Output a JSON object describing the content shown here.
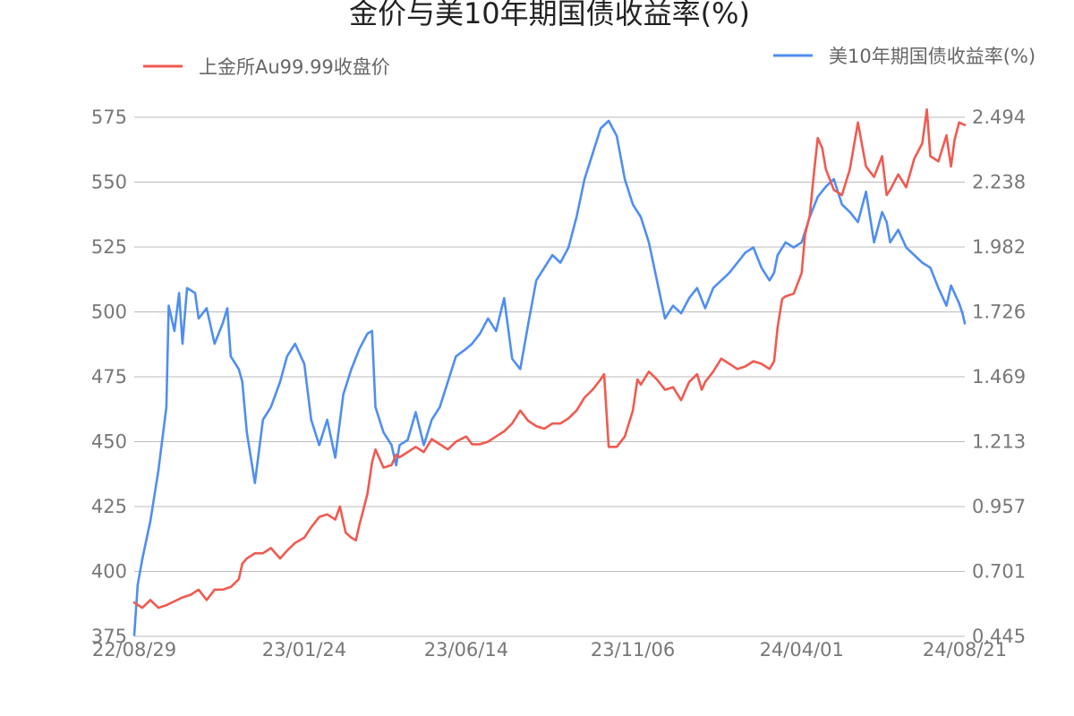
{
  "chart_data": {
    "type": "line",
    "title": "金价与美10年期国债收益率(%)",
    "x_ticks": [
      "22/08/29",
      "23/01/24",
      "23/06/14",
      "23/11/06",
      "24/04/01",
      "24/08/21"
    ],
    "y_left": {
      "ticks": [
        "375",
        "400",
        "425",
        "450",
        "475",
        "500",
        "525",
        "550",
        "575"
      ],
      "ylim": [
        375,
        575
      ]
    },
    "y_right": {
      "ticks": [
        "0.445",
        "0.701",
        "0.957",
        "1.213",
        "1.469",
        "1.726",
        "1.982",
        "2.238",
        "2.494"
      ],
      "ylim": [
        0.445,
        2.494
      ]
    },
    "grid": true,
    "legend_position": "top",
    "series": [
      {
        "name": "上金所Au99.99收盘价",
        "axis": "left",
        "color": "#f05a50",
        "points": [
          [
            "22/08/29",
            388
          ],
          [
            "22/09/05",
            386
          ],
          [
            "22/09/12",
            389
          ],
          [
            "22/09/19",
            386
          ],
          [
            "22/09/26",
            387
          ],
          [
            "22/10/10",
            390
          ],
          [
            "22/10/17",
            391
          ],
          [
            "22/10/24",
            393
          ],
          [
            "22/10/31",
            389
          ],
          [
            "22/11/07",
            393
          ],
          [
            "22/11/14",
            393
          ],
          [
            "22/11/21",
            394
          ],
          [
            "22/11/28",
            397
          ],
          [
            "22/12/01",
            403
          ],
          [
            "22/12/05",
            405
          ],
          [
            "22/12/12",
            407
          ],
          [
            "22/12/19",
            407
          ],
          [
            "22/12/26",
            409
          ],
          [
            "23/01/03",
            405
          ],
          [
            "23/01/09",
            408
          ],
          [
            "23/01/16",
            411
          ],
          [
            "23/01/24",
            413
          ],
          [
            "23/01/30",
            417
          ],
          [
            "23/02/06",
            421
          ],
          [
            "23/02/13",
            422
          ],
          [
            "23/02/20",
            420
          ],
          [
            "23/02/24",
            425
          ],
          [
            "23/03/01",
            415
          ],
          [
            "23/03/06",
            413
          ],
          [
            "23/03/10",
            412
          ],
          [
            "23/03/13",
            418
          ],
          [
            "23/03/16",
            423
          ],
          [
            "23/03/20",
            430
          ],
          [
            "23/03/24",
            442
          ],
          [
            "23/03/27",
            447
          ],
          [
            "23/04/03",
            440
          ],
          [
            "23/04/10",
            441
          ],
          [
            "23/04/14",
            445
          ],
          [
            "23/04/17",
            444
          ],
          [
            "23/04/24",
            446
          ],
          [
            "23/05/01",
            448
          ],
          [
            "23/05/08",
            446
          ],
          [
            "23/05/15",
            451
          ],
          [
            "23/05/22",
            449
          ],
          [
            "23/05/29",
            447
          ],
          [
            "23/06/05",
            450
          ],
          [
            "23/06/14",
            452
          ],
          [
            "23/06/19",
            449
          ],
          [
            "23/06/26",
            449
          ],
          [
            "23/07/03",
            450
          ],
          [
            "23/07/10",
            452
          ],
          [
            "23/07/17",
            454
          ],
          [
            "23/07/24",
            457
          ],
          [
            "23/07/31",
            462
          ],
          [
            "23/08/07",
            458
          ],
          [
            "23/08/14",
            456
          ],
          [
            "23/08/21",
            455
          ],
          [
            "23/08/28",
            457
          ],
          [
            "23/09/04",
            457
          ],
          [
            "23/09/11",
            459
          ],
          [
            "23/09/18",
            462
          ],
          [
            "23/09/25",
            467
          ],
          [
            "23/10/02",
            470
          ],
          [
            "23/10/09",
            474
          ],
          [
            "23/10/12",
            476
          ],
          [
            "23/10/16",
            448
          ],
          [
            "23/10/23",
            448
          ],
          [
            "23/10/30",
            452
          ],
          [
            "23/11/06",
            462
          ],
          [
            "23/11/10",
            474
          ],
          [
            "23/11/13",
            472
          ],
          [
            "23/11/20",
            477
          ],
          [
            "23/11/27",
            474
          ],
          [
            "23/12/04",
            470
          ],
          [
            "23/12/11",
            471
          ],
          [
            "23/12/18",
            466
          ],
          [
            "23/12/25",
            473
          ],
          [
            "24/01/01",
            476
          ],
          [
            "24/01/05",
            470
          ],
          [
            "24/01/08",
            473
          ],
          [
            "24/01/15",
            477
          ],
          [
            "24/01/22",
            482
          ],
          [
            "24/01/29",
            480
          ],
          [
            "24/02/05",
            478
          ],
          [
            "24/02/12",
            479
          ],
          [
            "24/02/19",
            481
          ],
          [
            "24/02/26",
            480
          ],
          [
            "24/03/04",
            478
          ],
          [
            "24/03/08",
            481
          ],
          [
            "24/03/11",
            494
          ],
          [
            "24/03/15",
            505
          ],
          [
            "24/03/18",
            506
          ],
          [
            "24/03/25",
            507
          ],
          [
            "24/04/01",
            515
          ],
          [
            "24/04/04",
            530
          ],
          [
            "24/04/08",
            537
          ],
          [
            "24/04/12",
            555
          ],
          [
            "24/04/15",
            567
          ],
          [
            "24/04/19",
            563
          ],
          [
            "24/04/22",
            555
          ],
          [
            "24/04/29",
            547
          ],
          [
            "24/05/06",
            545
          ],
          [
            "24/05/13",
            555
          ],
          [
            "24/05/20",
            573
          ],
          [
            "24/05/27",
            556
          ],
          [
            "24/06/03",
            552
          ],
          [
            "24/06/10",
            560
          ],
          [
            "24/06/14",
            545
          ],
          [
            "24/06/17",
            547
          ],
          [
            "24/06/24",
            553
          ],
          [
            "24/07/01",
            548
          ],
          [
            "24/07/08",
            559
          ],
          [
            "24/07/15",
            565
          ],
          [
            "24/07/19",
            578
          ],
          [
            "24/07/22",
            560
          ],
          [
            "24/07/29",
            558
          ],
          [
            "24/08/05",
            568
          ],
          [
            "24/08/09",
            556
          ],
          [
            "24/08/12",
            566
          ],
          [
            "24/08/16",
            573
          ],
          [
            "24/08/21",
            572
          ]
        ]
      },
      {
        "name": "美10年期国债收益率(%)",
        "axis": "right",
        "color": "#4f8ef0",
        "points": [
          [
            "22/08/29",
            0.45
          ],
          [
            "22/09/01",
            0.65
          ],
          [
            "22/09/05",
            0.75
          ],
          [
            "22/09/12",
            0.9
          ],
          [
            "22/09/19",
            1.1
          ],
          [
            "22/09/26",
            1.35
          ],
          [
            "22/09/28",
            1.75
          ],
          [
            "22/10/03",
            1.65
          ],
          [
            "22/10/07",
            1.8
          ],
          [
            "22/10/10",
            1.6
          ],
          [
            "22/10/14",
            1.82
          ],
          [
            "22/10/21",
            1.8
          ],
          [
            "22/10/24",
            1.7
          ],
          [
            "22/10/31",
            1.74
          ],
          [
            "22/11/07",
            1.6
          ],
          [
            "22/11/14",
            1.68
          ],
          [
            "22/11/18",
            1.74
          ],
          [
            "22/11/21",
            1.55
          ],
          [
            "22/11/28",
            1.5
          ],
          [
            "22/12/01",
            1.45
          ],
          [
            "22/12/05",
            1.25
          ],
          [
            "22/12/12",
            1.05
          ],
          [
            "22/12/19",
            1.3
          ],
          [
            "22/12/26",
            1.35
          ],
          [
            "23/01/03",
            1.45
          ],
          [
            "23/01/09",
            1.55
          ],
          [
            "23/01/16",
            1.6
          ],
          [
            "23/01/24",
            1.52
          ],
          [
            "23/01/30",
            1.3
          ],
          [
            "23/02/06",
            1.2
          ],
          [
            "23/02/13",
            1.3
          ],
          [
            "23/02/20",
            1.15
          ],
          [
            "23/02/27",
            1.4
          ],
          [
            "23/03/06",
            1.5
          ],
          [
            "23/03/13",
            1.58
          ],
          [
            "23/03/20",
            1.64
          ],
          [
            "23/03/24",
            1.65
          ],
          [
            "23/03/27",
            1.35
          ],
          [
            "23/04/03",
            1.25
          ],
          [
            "23/04/10",
            1.2
          ],
          [
            "23/04/14",
            1.12
          ],
          [
            "23/04/17",
            1.2
          ],
          [
            "23/04/24",
            1.22
          ],
          [
            "23/05/01",
            1.33
          ],
          [
            "23/05/08",
            1.2
          ],
          [
            "23/05/15",
            1.3
          ],
          [
            "23/05/22",
            1.35
          ],
          [
            "23/05/29",
            1.45
          ],
          [
            "23/06/05",
            1.55
          ],
          [
            "23/06/14",
            1.58
          ],
          [
            "23/06/19",
            1.6
          ],
          [
            "23/06/26",
            1.64
          ],
          [
            "23/07/03",
            1.7
          ],
          [
            "23/07/10",
            1.65
          ],
          [
            "23/07/17",
            1.78
          ],
          [
            "23/07/24",
            1.54
          ],
          [
            "23/07/31",
            1.5
          ],
          [
            "23/08/07",
            1.68
          ],
          [
            "23/08/14",
            1.85
          ],
          [
            "23/08/21",
            1.9
          ],
          [
            "23/08/28",
            1.95
          ],
          [
            "23/09/04",
            1.92
          ],
          [
            "23/09/11",
            1.98
          ],
          [
            "23/09/18",
            2.1
          ],
          [
            "23/09/25",
            2.25
          ],
          [
            "23/10/02",
            2.35
          ],
          [
            "23/10/09",
            2.45
          ],
          [
            "23/10/16",
            2.48
          ],
          [
            "23/10/23",
            2.42
          ],
          [
            "23/10/30",
            2.25
          ],
          [
            "23/11/06",
            2.15
          ],
          [
            "23/11/13",
            2.1
          ],
          [
            "23/11/20",
            2.0
          ],
          [
            "23/11/27",
            1.85
          ],
          [
            "23/12/04",
            1.7
          ],
          [
            "23/12/11",
            1.75
          ],
          [
            "23/12/18",
            1.72
          ],
          [
            "23/12/25",
            1.78
          ],
          [
            "24/01/01",
            1.82
          ],
          [
            "24/01/08",
            1.74
          ],
          [
            "24/01/15",
            1.82
          ],
          [
            "24/01/22",
            1.85
          ],
          [
            "24/01/29",
            1.88
          ],
          [
            "24/02/05",
            1.92
          ],
          [
            "24/02/12",
            1.96
          ],
          [
            "24/02/19",
            1.98
          ],
          [
            "24/02/26",
            1.9
          ],
          [
            "24/03/04",
            1.85
          ],
          [
            "24/03/08",
            1.88
          ],
          [
            "24/03/11",
            1.95
          ],
          [
            "24/03/18",
            2.0
          ],
          [
            "24/03/25",
            1.98
          ],
          [
            "24/04/01",
            2.0
          ],
          [
            "24/04/08",
            2.1
          ],
          [
            "24/04/15",
            2.18
          ],
          [
            "24/04/22",
            2.22
          ],
          [
            "24/04/29",
            2.25
          ],
          [
            "24/05/06",
            2.15
          ],
          [
            "24/05/13",
            2.12
          ],
          [
            "24/05/20",
            2.08
          ],
          [
            "24/05/27",
            2.2
          ],
          [
            "24/06/03",
            2.0
          ],
          [
            "24/06/10",
            2.12
          ],
          [
            "24/06/14",
            2.08
          ],
          [
            "24/06/17",
            2.0
          ],
          [
            "24/06/24",
            2.05
          ],
          [
            "24/07/01",
            1.98
          ],
          [
            "24/07/08",
            1.95
          ],
          [
            "24/07/15",
            1.92
          ],
          [
            "24/07/22",
            1.9
          ],
          [
            "24/07/29",
            1.82
          ],
          [
            "24/08/05",
            1.75
          ],
          [
            "24/08/09",
            1.83
          ],
          [
            "24/08/12",
            1.8
          ],
          [
            "24/08/16",
            1.76
          ],
          [
            "24/08/19",
            1.72
          ],
          [
            "24/08/21",
            1.68
          ]
        ]
      }
    ]
  }
}
